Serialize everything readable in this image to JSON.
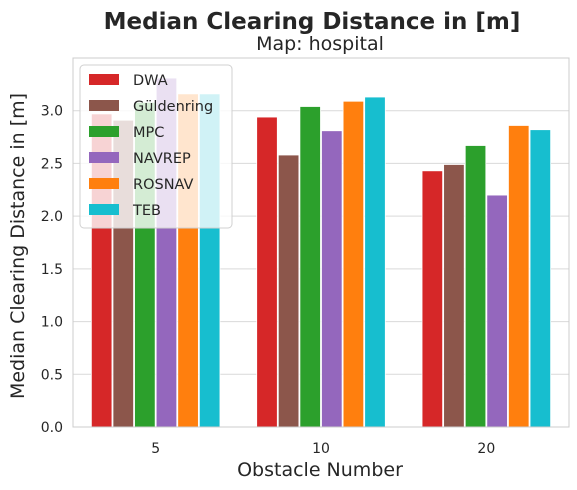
{
  "chart_data": {
    "type": "bar",
    "title": "Median Clearing Distance in [m]",
    "subtitle": "Map: hospital",
    "xlabel": "Obstacle Number",
    "ylabel": "Median Clearing Distance in [m]",
    "categories": [
      "5",
      "10",
      "20"
    ],
    "ylim": [
      0,
      3.5
    ],
    "yticks": [
      "0.0",
      "0.5",
      "1.0",
      "1.5",
      "2.0",
      "2.5",
      "3.0"
    ],
    "grid": true,
    "legend_position": "top-left",
    "series": [
      {
        "name": "DWA",
        "color": "#d62728",
        "values": [
          2.97,
          2.94,
          2.43
        ]
      },
      {
        "name": "Güldenring",
        "color": "#8c564b",
        "values": [
          2.91,
          2.58,
          2.49
        ]
      },
      {
        "name": "MPC",
        "color": "#2ca02c",
        "values": [
          3.08,
          3.04,
          2.67
        ]
      },
      {
        "name": "NAVREP",
        "color": "#9467bd",
        "values": [
          3.31,
          2.81,
          2.2
        ]
      },
      {
        "name": "ROSNAV",
        "color": "#ff7f0e",
        "values": [
          3.16,
          3.09,
          2.86
        ]
      },
      {
        "name": "TEB",
        "color": "#17becf",
        "values": [
          3.16,
          3.13,
          2.82
        ]
      }
    ]
  }
}
